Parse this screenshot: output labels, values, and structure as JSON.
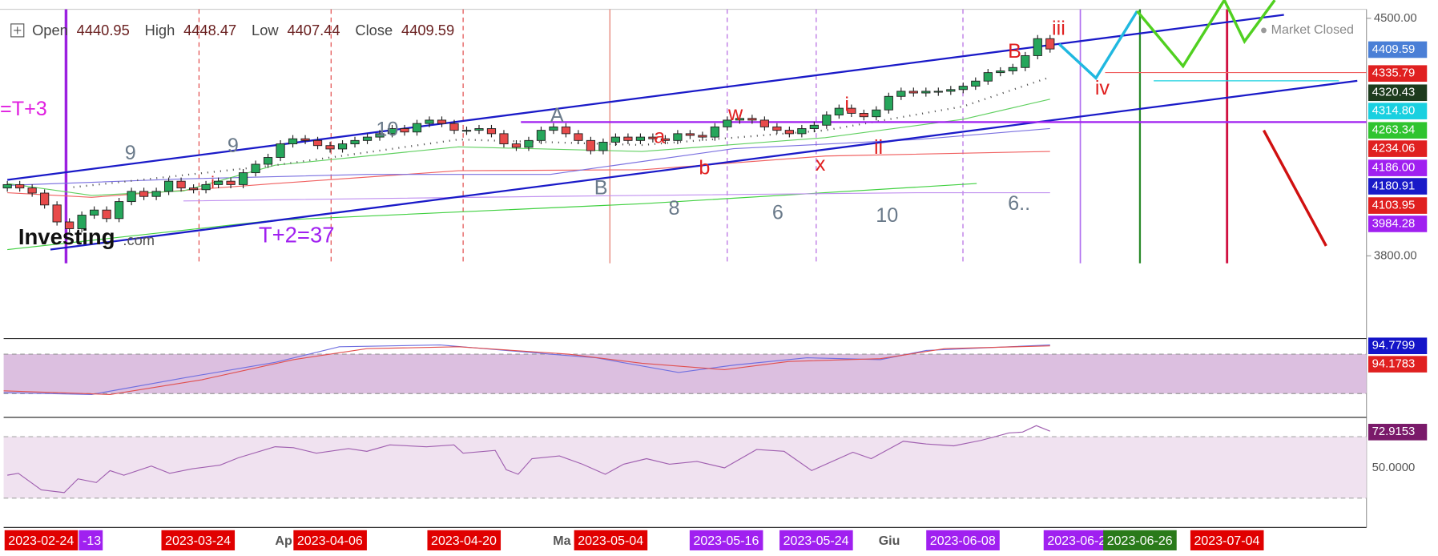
{
  "header": {
    "open_label": "Open",
    "open": "4440.95",
    "high_label": "High",
    "high": "4448.47",
    "low_label": "Low",
    "low": "4407.44",
    "close_label": "Close",
    "close": "4409.59"
  },
  "status": "Market Closed",
  "chart_data": {
    "type": "candlestick",
    "first_open": 4000,
    "closes": [
      4010,
      4000,
      3985,
      3950,
      3900,
      3880,
      3920,
      3935,
      3910,
      3960,
      3990,
      3975,
      3990,
      4020,
      4000,
      3995,
      4010,
      4020,
      4010,
      4045,
      4070,
      4090,
      4130,
      4145,
      4140,
      4125,
      4115,
      4130,
      4140,
      4150,
      4160,
      4175,
      4165,
      4190,
      4200,
      4190,
      4170,
      4170,
      4175,
      4160,
      4130,
      4120,
      4140,
      4170,
      4180,
      4160,
      4140,
      4110,
      4135,
      4150,
      4140,
      4150,
      4145,
      4140,
      4160,
      4155,
      4150,
      4180,
      4200,
      4205,
      4200,
      4180,
      4170,
      4160,
      4175,
      4185,
      4215,
      4235,
      4220,
      4210,
      4230,
      4270,
      4285,
      4280,
      4285,
      4285,
      4290,
      4300,
      4315,
      4340,
      4345,
      4355,
      4390,
      4440,
      4409.59
    ],
    "up_color": "#26a65b",
    "down_color": "#e84b4b",
    "ylim": [
      3778,
      4532
    ],
    "yticks": [
      {
        "value": 4500,
        "label": "4500.00"
      },
      {
        "value": 3800,
        "label": "3800.00"
      }
    ]
  },
  "price_labels": [
    {
      "text": "4409.59",
      "color": "#4a7fd6"
    },
    {
      "text": "4335.79",
      "color": "#e02020"
    },
    {
      "text": "4320.43",
      "color": "#1d3b1d"
    },
    {
      "text": "4314.80",
      "color": "#19d0e0"
    },
    {
      "text": "4263.34",
      "color": "#2fc42f"
    },
    {
      "text": "4234.06",
      "color": "#e02020"
    },
    {
      "text": "4186.00",
      "color": "#a020f0"
    },
    {
      "text": "4180.91",
      "color": "#1a1ac8"
    },
    {
      "text": "4103.95",
      "color": "#e02020"
    },
    {
      "text": "3984.28",
      "color": "#a020f0"
    }
  ],
  "stoch_labels": [
    {
      "text": "94.7799",
      "color": "#1414c8"
    },
    {
      "text": "94.1783",
      "color": "#e02020"
    }
  ],
  "rsi_labels": [
    {
      "text": "72.9153",
      "color": "#7a1a6a"
    },
    {
      "text": "50.0000",
      "color": "none"
    }
  ],
  "dates": [
    {
      "text": "2023-02-24",
      "color": "#e00000"
    },
    {
      "text": "-13",
      "color": "#a020f0"
    },
    {
      "text": "2023-03-24",
      "color": "#e00000"
    },
    {
      "text": "Ap",
      "color": "none"
    },
    {
      "text": "2023-04-06",
      "color": "#e00000"
    },
    {
      "text": "2023-04-20",
      "color": "#e00000"
    },
    {
      "text": "Ma",
      "color": "none"
    },
    {
      "text": "2023-05-04",
      "color": "#e00000"
    },
    {
      "text": "2023-05-16",
      "color": "#a020f0"
    },
    {
      "text": "2023-05-24",
      "color": "#a020f0"
    },
    {
      "text": "Giu",
      "color": "none"
    },
    {
      "text": "2023-06-08",
      "color": "#a020f0"
    },
    {
      "text": "2023-06-2",
      "color": "#a020f0"
    },
    {
      "text": "2023-06-26",
      "color": "#2a7a1a"
    },
    {
      "text": "2023-07-04",
      "color": "#e00000"
    }
  ],
  "annotations": [
    {
      "text": "=T+3",
      "color": "#e020e0"
    },
    {
      "text": "9",
      "color": "#6a7a8a"
    },
    {
      "text": "9",
      "color": "#6a7a8a"
    },
    {
      "text": "10",
      "color": "#6a7a8a"
    },
    {
      "text": "A",
      "color": "#6a7a8a"
    },
    {
      "text": "B",
      "color": "#6a7a8a"
    },
    {
      "text": "a",
      "color": "#e02020"
    },
    {
      "text": "b",
      "color": "#e02020"
    },
    {
      "text": "w",
      "color": "#e02020"
    },
    {
      "text": "x",
      "color": "#e02020"
    },
    {
      "text": "i",
      "color": "#e02020"
    },
    {
      "text": "ii",
      "color": "#e02020"
    },
    {
      "text": "B",
      "color": "#e02020"
    },
    {
      "text": "iii",
      "color": "#e02020"
    },
    {
      "text": "iv",
      "color": "#e02020"
    },
    {
      "text": "8",
      "color": "#6a7a8a"
    },
    {
      "text": "6",
      "color": "#6a7a8a"
    },
    {
      "text": "10",
      "color": "#6a7a8a"
    },
    {
      "text": "6..",
      "color": "#6a7a8a"
    },
    {
      "text": "T+2=37",
      "color": "#a020f0"
    },
    {
      "text": "i",
      "color": "#e02020"
    }
  ],
  "logo": {
    "name": "Investing",
    ".com": ".com"
  }
}
